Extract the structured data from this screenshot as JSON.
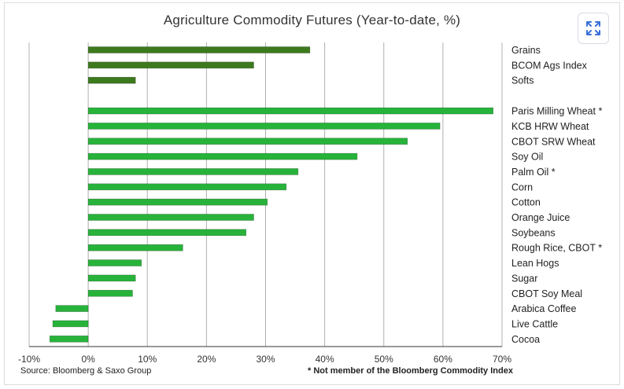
{
  "chart_data": {
    "type": "bar",
    "orientation": "horizontal",
    "title": "Agriculture Commodity Futures (Year-to-date, %)",
    "categories": [
      "Grains",
      "BCOM Ags Index",
      "Softs",
      "Paris Milling Wheat *",
      "KCB HRW Wheat",
      "CBOT SRW Wheat",
      "Soy Oil",
      "Palm Oil *",
      "Corn",
      "Cotton",
      "Orange Juice",
      "Soybeans",
      "Rough Rice, CBOT *",
      "Lean Hogs",
      "Sugar",
      "CBOT Soy Meal",
      "Arabica Coffee",
      "Live Cattle",
      "Cocoa"
    ],
    "values": [
      37.5,
      28,
      8,
      68.5,
      59.5,
      54,
      45.5,
      35.5,
      33.5,
      30.3,
      28,
      26.7,
      16,
      9,
      8,
      7.5,
      -5.5,
      -6,
      -6.5
    ],
    "groups": [
      "index",
      "index",
      "index",
      "commodity",
      "commodity",
      "commodity",
      "commodity",
      "commodity",
      "commodity",
      "commodity",
      "commodity",
      "commodity",
      "commodity",
      "commodity",
      "commodity",
      "commodity",
      "commodity",
      "commodity",
      "commodity"
    ],
    "group_gap_after": 2,
    "xlim": [
      -10,
      70
    ],
    "xticks": [
      -10,
      0,
      10,
      20,
      30,
      40,
      50,
      60,
      70
    ],
    "xtick_labels": [
      "-10%",
      "0%",
      "10%",
      "20%",
      "30%",
      "40%",
      "50%",
      "60%",
      "70%"
    ],
    "grid": "vertical",
    "colors": {
      "index": "#3d7a1e",
      "commodity": "#27b33a",
      "grid": "#b0b0b0",
      "axis": "#333333"
    },
    "source": "Source: Bloomberg & Saxo Group",
    "footnote": "* Not member of the Bloomberg Commodity Index"
  },
  "expand_button": {
    "icon": "expand-arrows-icon",
    "color": "#3a6fd8"
  }
}
